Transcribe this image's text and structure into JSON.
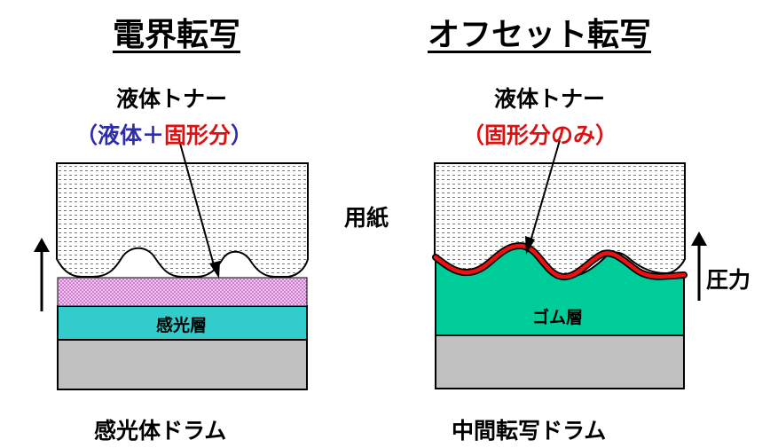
{
  "left": {
    "title": "電界転写",
    "toner_label": "液体トナー",
    "toner_comp": {
      "open": "（",
      "liquid": "液体＋",
      "solid": "固形分",
      "close": "）"
    },
    "layer_photo": "感光層",
    "drum_label": "感光体ドラム"
  },
  "right": {
    "title": "オフセット転写",
    "toner_label": "液体トナー",
    "toner_comp": {
      "open": "（",
      "solid": "固形分のみ",
      "close": "）"
    },
    "layer_rubber": "ゴム層",
    "drum_label": "中間転写ドラム"
  },
  "paper_label": "用紙",
  "pressure_label": "圧力",
  "colors": {
    "photo_layer": "#33cccc",
    "rubber_layer": "#00cc99",
    "base": "#c0c0c0",
    "toner_pink": "#f0c0f0",
    "toner_red": "#ee1111",
    "text_blue": "#2d2dab"
  }
}
